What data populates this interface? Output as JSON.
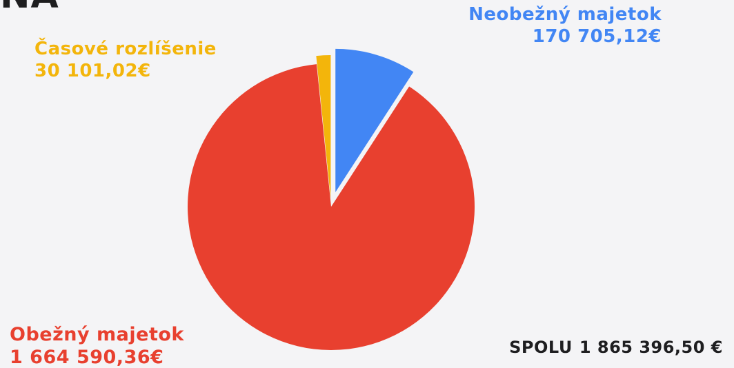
{
  "heading_fragment": "NA",
  "chart_data": {
    "type": "pie",
    "categories": [
      "Neobežný majetok",
      "Obežný majetok",
      "Časové rozlíšenie"
    ],
    "values": [
      170705.12,
      1664590.36,
      30101.02
    ],
    "value_labels": [
      "170 705,12€",
      "1 664 590,36€",
      "30 101,02€"
    ],
    "colors": [
      "#4286f4",
      "#e8402f",
      "#f3b50b"
    ],
    "title": "",
    "total_label": "SPOLU",
    "total_value": "1 865 396,50 €"
  }
}
